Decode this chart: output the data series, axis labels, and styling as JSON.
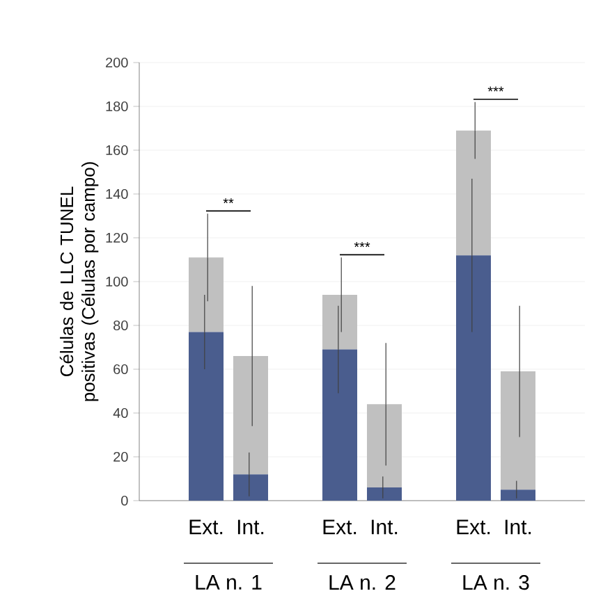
{
  "chart_data": {
    "type": "bar",
    "ylabel": "Células de LLC TUNEL positivas (Células por campo)",
    "categories": [
      "Ext.",
      "Int.",
      "Ext.",
      "Int.",
      "Ext.",
      "Int."
    ],
    "series": [
      {
        "color": "#4a5d8e",
        "values": [
          77,
          12,
          69,
          6,
          112,
          5
        ],
        "errors": [
          17,
          10,
          20,
          5,
          35,
          4
        ]
      },
      {
        "color": "#c0c0c0",
        "values": [
          34,
          54,
          25,
          38,
          57,
          54
        ],
        "errors": [
          20,
          32,
          17,
          28,
          13,
          30
        ]
      }
    ],
    "stacked": true,
    "ylim": [
      0,
      200
    ],
    "yticks": [
      0,
      20,
      40,
      60,
      80,
      100,
      120,
      140,
      160,
      180,
      200
    ],
    "grid": "y",
    "annotations": [
      "**",
      "***",
      "***",
      "LA n. 1",
      "LA n. 2",
      "LA n. 3"
    ]
  }
}
